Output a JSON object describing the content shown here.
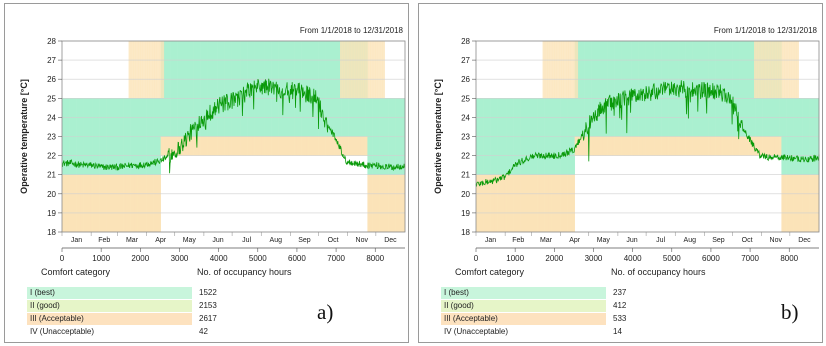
{
  "colors": {
    "best": "#c8f5dc",
    "good": "#e6f5c8",
    "acceptable": "#fde2bf",
    "unacceptable": "#ffffff",
    "series": "#0a9a0a",
    "band_best": "#aaf0d0",
    "band_acc": "#fbe3b8"
  },
  "chart_data": [
    {
      "type": "line",
      "title": "From 1/1/2018 to 12/31/2018",
      "ylabel": "Operative temperature [°C]",
      "xlabel": "",
      "xlim": [
        0,
        8760
      ],
      "ylim": [
        18,
        28
      ],
      "x_ticks": [
        0,
        1000,
        2000,
        3000,
        4000,
        5000,
        6000,
        7000,
        8000
      ],
      "y_ticks": [
        18,
        19,
        20,
        21,
        22,
        23,
        24,
        25,
        26,
        27,
        28
      ],
      "months": [
        "Jan",
        "Feb",
        "Mar",
        "Apr",
        "May",
        "Jun",
        "Jul",
        "Aug",
        "Sep",
        "Oct",
        "Nov",
        "Dec"
      ],
      "series": [
        {
          "x": [
            0,
            250,
            500,
            750,
            1000,
            1250,
            1500,
            1750,
            2000,
            2250,
            2500,
            2750,
            3000,
            3250,
            3500,
            3750,
            4000,
            4250,
            4500,
            4750,
            5000,
            5250,
            5500,
            5750,
            6000,
            6250,
            6500,
            6750,
            7000,
            7250,
            7500,
            7750,
            8000,
            8250,
            8500,
            8760
          ],
          "y": [
            21.6,
            21.6,
            21.5,
            21.5,
            21.4,
            21.4,
            21.4,
            21.5,
            21.5,
            21.6,
            21.7,
            22.0,
            22.4,
            23.1,
            23.8,
            24.2,
            24.6,
            24.8,
            25.0,
            25.4,
            25.6,
            25.6,
            25.5,
            25.4,
            25.4,
            25.3,
            25.0,
            23.7,
            22.9,
            21.7,
            21.6,
            21.5,
            21.5,
            21.4,
            21.4,
            21.5
          ]
        }
      ],
      "legend_title": "Comfort category",
      "legend_value_title": "No. of occupancy hours",
      "categories": [
        {
          "label": "I (best)",
          "hours": "1522"
        },
        {
          "label": "II (good)",
          "hours": "2153"
        },
        {
          "label": "III (Acceptable)",
          "hours": "2617"
        },
        {
          "label": "IV (Unacceptable)",
          "hours": "42"
        }
      ]
    },
    {
      "type": "line",
      "title": "From 1/1/2018 to 12/31/2018",
      "ylabel": "Operative temperature [°C]",
      "xlabel": "",
      "xlim": [
        0,
        8760
      ],
      "ylim": [
        18,
        28
      ],
      "x_ticks": [
        0,
        1000,
        2000,
        3000,
        4000,
        5000,
        6000,
        7000,
        8000
      ],
      "y_ticks": [
        18,
        19,
        20,
        21,
        22,
        23,
        24,
        25,
        26,
        27,
        28
      ],
      "months": [
        "Jan",
        "Feb",
        "Mar",
        "Apr",
        "May",
        "Jun",
        "Jul",
        "Aug",
        "Sep",
        "Oct",
        "Nov",
        "Dec"
      ],
      "series": [
        {
          "x": [
            0,
            250,
            500,
            750,
            1000,
            1250,
            1500,
            1750,
            2000,
            2250,
            2500,
            2750,
            3000,
            3250,
            3500,
            3750,
            4000,
            4250,
            4500,
            4750,
            5000,
            5250,
            5500,
            5750,
            6000,
            6250,
            6500,
            6750,
            7000,
            7250,
            7500,
            7750,
            8000,
            8250,
            8500,
            8760
          ],
          "y": [
            20.5,
            20.6,
            20.7,
            20.9,
            21.5,
            21.8,
            22.0,
            22.0,
            22.0,
            22.1,
            22.3,
            23.2,
            24.0,
            24.6,
            24.8,
            25.0,
            25.1,
            25.2,
            25.3,
            25.4,
            25.5,
            25.5,
            25.4,
            25.4,
            25.4,
            25.3,
            25.0,
            23.7,
            22.8,
            22.0,
            21.9,
            21.9,
            21.9,
            21.8,
            21.8,
            21.9
          ]
        }
      ],
      "legend_title": "Comfort category",
      "legend_value_title": "No. of occupancy hours",
      "categories": [
        {
          "label": "I (best)",
          "hours": "237"
        },
        {
          "label": "II (good)",
          "hours": "412"
        },
        {
          "label": "III (Acceptable)",
          "hours": "533"
        },
        {
          "label": "IV (Unacceptable)",
          "hours": "14"
        }
      ]
    }
  ],
  "panel_labels": [
    "a)",
    "b)"
  ]
}
